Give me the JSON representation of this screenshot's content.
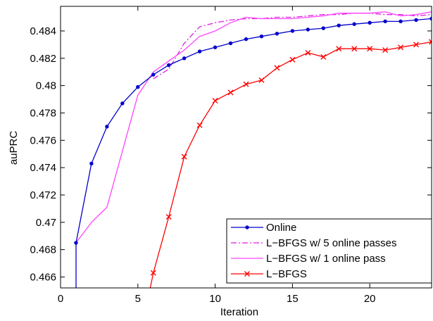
{
  "chart_data": {
    "type": "line",
    "title": "",
    "xlabel": "Iteration",
    "ylabel": "auPRC",
    "xlim": [
      0,
      24
    ],
    "ylim": [
      0.4652,
      0.4858
    ],
    "xticks": [
      0,
      5,
      10,
      15,
      20
    ],
    "xtick_labels": [
      "0",
      "5",
      "10",
      "15",
      "20"
    ],
    "yticks": [
      0.466,
      0.468,
      0.47,
      0.472,
      0.474,
      0.476,
      0.478,
      0.48,
      0.482,
      0.484
    ],
    "ytick_labels": [
      "0.466",
      "0.468",
      "0.47",
      "0.472",
      "0.474",
      "0.476",
      "0.478",
      "0.48",
      "0.482",
      "0.484"
    ],
    "grid": false,
    "legend_position": "bottom-right",
    "series": [
      {
        "name": "Online",
        "color": "#0000cc",
        "line_style": "solid",
        "marker": "dot",
        "x": [
          1,
          1,
          2,
          3,
          4,
          5,
          6,
          7,
          8,
          9,
          10,
          11,
          12,
          13,
          14,
          15,
          16,
          17,
          18,
          19,
          20,
          21,
          22,
          23,
          24
        ],
        "y": [
          0.4652,
          0.4685,
          0.4743,
          0.477,
          0.4787,
          0.4799,
          0.4808,
          0.4815,
          0.482,
          0.4825,
          0.4828,
          0.4831,
          0.4834,
          0.4836,
          0.4838,
          0.484,
          0.4841,
          0.4842,
          0.4844,
          0.4845,
          0.4846,
          0.4847,
          0.4847,
          0.4848,
          0.4849
        ]
      },
      {
        "name": "L−BFGS w/ 5 online passes",
        "color": "#e020e0",
        "line_style": "dashdot",
        "marker": "none",
        "x": [
          6,
          7,
          8,
          9,
          10,
          11,
          12,
          13,
          14,
          15,
          16,
          17,
          18,
          19,
          20,
          21,
          22,
          23,
          24
        ],
        "y": [
          0.4805,
          0.4812,
          0.4831,
          0.4843,
          0.4846,
          0.4848,
          0.4849,
          0.4849,
          0.485,
          0.485,
          0.4851,
          0.4852,
          0.4852,
          0.4853,
          0.4853,
          0.4852,
          0.4852,
          0.4851,
          0.4852
        ]
      },
      {
        "name": "L−BFGS w/ 1 online pass",
        "color": "#ff44ff",
        "line_style": "solid",
        "marker": "none",
        "x": [
          1,
          2,
          3,
          4,
          5,
          6,
          7,
          8,
          9,
          10,
          11,
          12,
          13,
          14,
          15,
          16,
          17,
          18,
          19,
          20,
          21,
          22,
          23,
          24
        ],
        "y": [
          0.4685,
          0.47,
          0.4711,
          0.4752,
          0.4793,
          0.481,
          0.4818,
          0.4826,
          0.4836,
          0.484,
          0.4846,
          0.485,
          0.4849,
          0.4849,
          0.4849,
          0.485,
          0.4851,
          0.4853,
          0.4853,
          0.4853,
          0.4854,
          0.4851,
          0.4852,
          0.4854
        ]
      },
      {
        "name": "L−BFGS",
        "color": "#ff0000",
        "line_style": "solid",
        "marker": "x",
        "x": [
          5.8,
          6,
          7,
          8,
          9,
          10,
          11,
          12,
          13,
          14,
          15,
          16,
          17,
          18,
          19,
          20,
          21,
          22,
          23,
          24
        ],
        "y": [
          0.4652,
          0.4663,
          0.4704,
          0.4748,
          0.4771,
          0.4789,
          0.4795,
          0.4801,
          0.4804,
          0.4813,
          0.4819,
          0.4824,
          0.4821,
          0.4827,
          0.4827,
          0.4827,
          0.4826,
          0.4828,
          0.483,
          0.4832
        ]
      }
    ]
  }
}
